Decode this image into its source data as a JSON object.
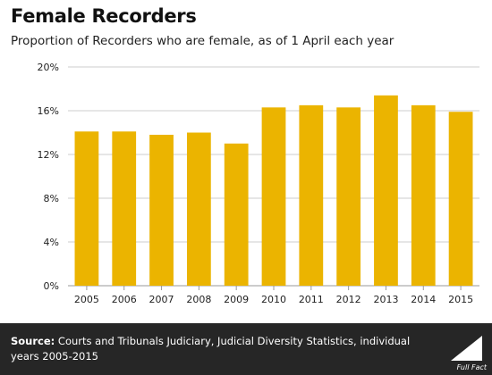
{
  "title": "Female Recorders",
  "subtitle": "Proportion of Recorders who are female, as of 1 April each year",
  "footer": {
    "source_label": "Source:",
    "source_text": "Courts and Tribunals Judiciary, Judicial Diversity Statistics, individual years 2005-2015",
    "logo_text": "Full Fact"
  },
  "colors": {
    "bar": "#EBB400",
    "grid": "#cccccc",
    "footer_bg": "#262626"
  },
  "chart_data": {
    "type": "bar",
    "categories": [
      "2005",
      "2006",
      "2007",
      "2008",
      "2009",
      "2010",
      "2011",
      "2012",
      "2013",
      "2014",
      "2015"
    ],
    "values": [
      14.1,
      14.1,
      13.8,
      14.0,
      13.0,
      16.3,
      16.5,
      16.3,
      17.4,
      16.5,
      15.9
    ],
    "ylim": [
      0,
      20
    ],
    "yticks": [
      0,
      4,
      8,
      12,
      16,
      20
    ],
    "ytick_labels": [
      "0%",
      "4%",
      "8%",
      "12%",
      "16%",
      "20%"
    ],
    "grid": true,
    "legend": "none"
  }
}
